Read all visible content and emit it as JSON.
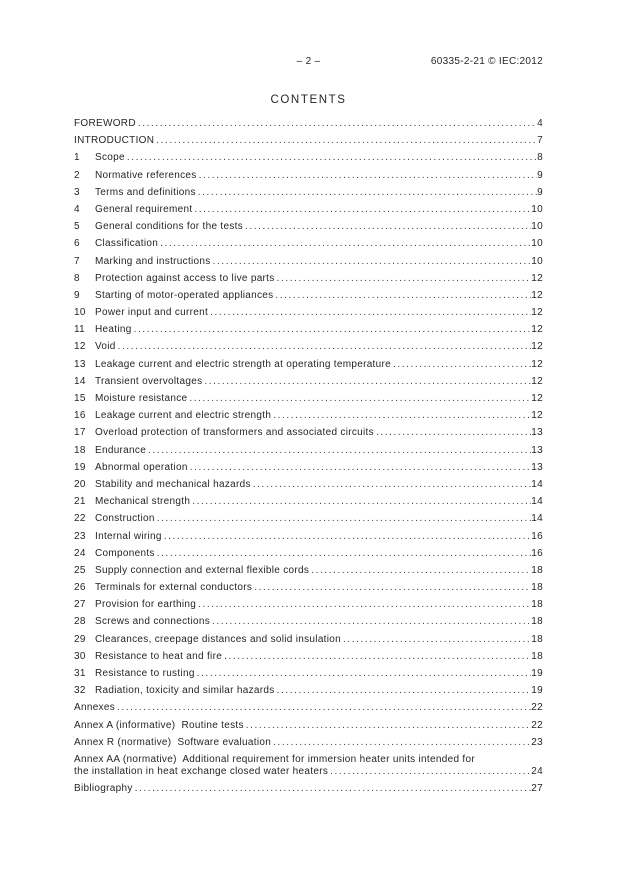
{
  "doc": {
    "header": {
      "page_marker": "– 2 –",
      "standard_ref": "60335-2-21 © IEC:2012"
    },
    "title": "CONTENTS",
    "text_color": "#262626",
    "toc_entries": [
      {
        "label": "FOREWORD",
        "page": "4"
      },
      {
        "label": "INTRODUCTION",
        "page": "7"
      },
      {
        "num": "1",
        "label": "Scope",
        "page": "8"
      },
      {
        "num": "2",
        "label": "Normative references",
        "page": "9"
      },
      {
        "num": "3",
        "label": "Terms and definitions",
        "page": "9"
      },
      {
        "num": "4",
        "label": "General requirement",
        "page": "10"
      },
      {
        "num": "5",
        "label": "General conditions for the tests",
        "page": "10"
      },
      {
        "num": "6",
        "label": "Classification",
        "page": "10"
      },
      {
        "num": "7",
        "label": "Marking and instructions",
        "page": "10"
      },
      {
        "num": "8",
        "label": "Protection against access to live parts",
        "page": "12"
      },
      {
        "num": "9",
        "label": "Starting of motor-operated appliances",
        "page": "12"
      },
      {
        "num": "10",
        "label": "Power input and current",
        "page": "12"
      },
      {
        "num": "11",
        "label": "Heating",
        "page": "12"
      },
      {
        "num": "12",
        "label": "Void",
        "page": "12"
      },
      {
        "num": "13",
        "label": "Leakage current and electric strength at operating temperature",
        "page": "12"
      },
      {
        "num": "14",
        "label": "Transient overvoltages",
        "page": "12"
      },
      {
        "num": "15",
        "label": "Moisture resistance",
        "page": "12"
      },
      {
        "num": "16",
        "label": "Leakage current and electric strength",
        "page": "12"
      },
      {
        "num": "17",
        "label": "Overload protection of transformers and associated circuits",
        "page": "13"
      },
      {
        "num": "18",
        "label": "Endurance",
        "page": "13"
      },
      {
        "num": "19",
        "label": "Abnormal operation",
        "page": "13"
      },
      {
        "num": "20",
        "label": "Stability and mechanical hazards",
        "page": "14"
      },
      {
        "num": "21",
        "label": "Mechanical strength",
        "page": "14"
      },
      {
        "num": "22",
        "label": "Construction",
        "page": "14"
      },
      {
        "num": "23",
        "label": "Internal wiring",
        "page": "16"
      },
      {
        "num": "24",
        "label": "Components",
        "page": "16"
      },
      {
        "num": "25",
        "label": "Supply connection and external flexible cords",
        "page": "18"
      },
      {
        "num": "26",
        "label": "Terminals for external conductors",
        "page": "18"
      },
      {
        "num": "27",
        "label": "Provision for earthing",
        "page": "18"
      },
      {
        "num": "28",
        "label": "Screws and connections",
        "page": "18"
      },
      {
        "num": "29",
        "label": "Clearances, creepage distances and solid insulation",
        "page": "18"
      },
      {
        "num": "30",
        "label": "Resistance to heat and fire",
        "page": "18"
      },
      {
        "num": "31",
        "label": "Resistance to rusting",
        "page": "19"
      },
      {
        "num": "32",
        "label": "Radiation, toxicity and similar hazards",
        "page": "19"
      },
      {
        "label": "Annexes",
        "page": "22"
      },
      {
        "label": "Annex A (informative)  Routine tests",
        "page": "22"
      },
      {
        "label": "Annex R (normative)  Software evaluation",
        "page": "23"
      },
      {
        "label": "Annex AA (normative)  Additional requirement for immersion heater units intended for",
        "label_line2": "the installation in heat exchange closed water heaters",
        "page": "24"
      },
      {
        "label": "Bibliography",
        "page": "27"
      }
    ]
  }
}
